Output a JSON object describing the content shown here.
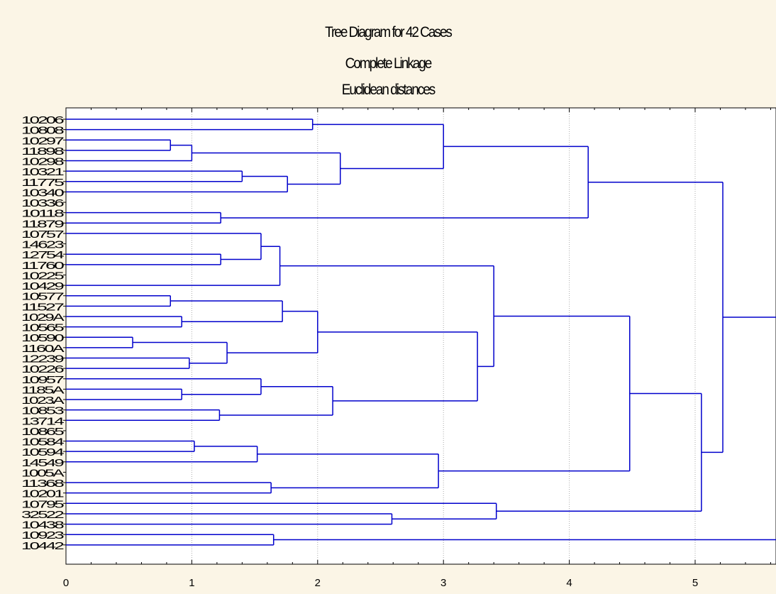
{
  "chart_data": {
    "type": "dendrogram",
    "title": [
      "Tree Diagram for 42 Cases",
      "Complete Linkage",
      "Euclidean distances"
    ],
    "leaves": [
      "10206",
      "10808",
      "10297",
      "11898",
      "10298",
      "10321",
      "11775",
      "10340",
      "10336",
      "10118",
      "11879",
      "10757",
      "14623",
      "12754",
      "11760",
      "10225",
      "10429",
      "10577",
      "11527",
      "1029A",
      "10565",
      "10590",
      "1160A",
      "12239",
      "10226",
      "10957",
      "1185A",
      "1023A",
      "10853",
      "13714",
      "10865",
      "10584",
      "10594",
      "14549",
      "1005A",
      "11368",
      "10201",
      "10795",
      "32522",
      "10438",
      "10923",
      "10442"
    ],
    "x_ticks": [
      0,
      1,
      2,
      3,
      4,
      5
    ],
    "xlim": [
      0,
      5.65
    ],
    "grid": "vertical dashed",
    "line_color": "#0000cc",
    "merges": [
      {
        "id": "A",
        "l": "10206",
        "r": "10808",
        "h": 1.96
      },
      {
        "id": "B",
        "l": "10297",
        "r": "11898",
        "h": 0.83
      },
      {
        "id": "C",
        "l": "B",
        "r": "10298",
        "h": 1.0
      },
      {
        "id": "D",
        "l": "10321",
        "r": "11775",
        "h": 1.4
      },
      {
        "id": "E",
        "l": "D",
        "r": "10340",
        "h": 1.76
      },
      {
        "id": "F",
        "l": "C",
        "r": "E",
        "h": 2.18
      },
      {
        "id": "G",
        "l": "A",
        "r": "F",
        "h": 3.0
      },
      {
        "id": "H",
        "l": "10118",
        "r": "11879",
        "h": 1.23
      },
      {
        "id": "I",
        "l": "G",
        "r": "H",
        "h": 4.15
      },
      {
        "id": "J",
        "l": "12754",
        "r": "11760",
        "h": 1.23
      },
      {
        "id": "K",
        "l": "10757",
        "r": "J",
        "h": 1.55
      },
      {
        "id": "L",
        "l": "K",
        "r": "10429",
        "h": 1.7
      },
      {
        "id": "M",
        "l": "10577",
        "r": "11527",
        "h": 0.83
      },
      {
        "id": "N",
        "l": "1029A",
        "r": "10565",
        "h": 0.92
      },
      {
        "id": "O",
        "l": "M",
        "r": "N",
        "h": 1.72
      },
      {
        "id": "P",
        "l": "10590",
        "r": "1160A",
        "h": 0.53
      },
      {
        "id": "Q",
        "l": "12239",
        "r": "10226",
        "h": 0.98
      },
      {
        "id": "R",
        "l": "P",
        "r": "Q",
        "h": 1.28
      },
      {
        "id": "S",
        "l": "O",
        "r": "R",
        "h": 2.0
      },
      {
        "id": "T",
        "l": "1185A",
        "r": "1023A",
        "h": 0.92
      },
      {
        "id": "U",
        "l": "10957",
        "r": "T",
        "h": 1.55
      },
      {
        "id": "V",
        "l": "10853",
        "r": "13714",
        "h": 1.22
      },
      {
        "id": "W",
        "l": "U",
        "r": "V",
        "h": 2.12
      },
      {
        "id": "X",
        "l": "S",
        "r": "W",
        "h": 3.27
      },
      {
        "id": "Y",
        "l": "L",
        "r": "X",
        "h": 3.4
      },
      {
        "id": "Z",
        "l": "10584",
        "r": "10594",
        "h": 1.02
      },
      {
        "id": "AA",
        "l": "Z",
        "r": "14549",
        "h": 1.52
      },
      {
        "id": "AB",
        "l": "11368",
        "r": "10201",
        "h": 1.63
      },
      {
        "id": "AC",
        "l": "AA",
        "r": "AB",
        "h": 2.96
      },
      {
        "id": "AD",
        "l": "Y",
        "r": "AC",
        "h": 4.48
      },
      {
        "id": "AE",
        "l": "32522",
        "r": "10438",
        "h": 2.59
      },
      {
        "id": "AF",
        "l": "10795",
        "r": "AE",
        "h": 3.42
      },
      {
        "id": "AG",
        "l": "AD",
        "r": "AF",
        "h": 5.05
      },
      {
        "id": "AH",
        "l": "I",
        "r": "AG",
        "h": 5.22
      },
      {
        "id": "AI",
        "l": "10923",
        "r": "10442",
        "h": 1.65
      },
      {
        "id": "AJ",
        "l": "AH",
        "r": "AI",
        "h": 5.7
      }
    ]
  }
}
